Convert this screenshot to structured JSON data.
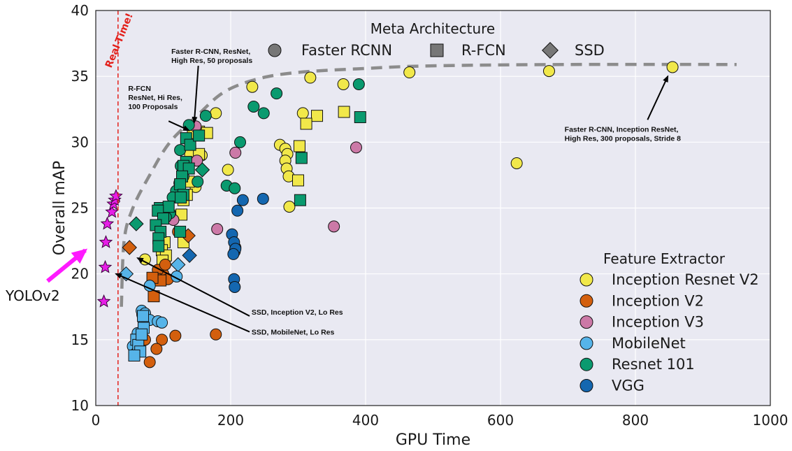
{
  "chart_data": {
    "type": "scatter",
    "xlabel": "GPU Time",
    "ylabel": "Overall mAP",
    "xlim": [
      0,
      1000
    ],
    "ylim": [
      10,
      40
    ],
    "xticks": [
      "0",
      "200",
      "400",
      "600",
      "800",
      "1000"
    ],
    "yticks": [
      "10",
      "15",
      "20",
      "25",
      "30",
      "35",
      "40"
    ],
    "grid": true,
    "realtime_label": "Real-Time!",
    "realtime_x": 33,
    "meta_legend": {
      "title": "Meta Architecture",
      "placement": "top-center",
      "items": [
        {
          "label": "Faster RCNN",
          "marker": "circle"
        },
        {
          "label": "R-FCN",
          "marker": "square"
        },
        {
          "label": "SSD",
          "marker": "diamond"
        }
      ]
    },
    "feature_legend": {
      "title": "Feature Extractor",
      "placement": "bottom-right",
      "items": [
        {
          "label": "Inception Resnet V2",
          "color": "#f1e84a"
        },
        {
          "label": "Inception V2",
          "color": "#d35f0e"
        },
        {
          "label": "Inception V3",
          "color": "#cc79a7"
        },
        {
          "label": "MobileNet",
          "color": "#56b4e9"
        },
        {
          "label": "Resnet 101",
          "color": "#0a9a6f"
        },
        {
          "label": "VGG",
          "color": "#1467b0"
        }
      ]
    },
    "frontier": [
      [
        38,
        17.5
      ],
      [
        42,
        22.5
      ],
      [
        55,
        25
      ],
      [
        80,
        27.5
      ],
      [
        110,
        30
      ],
      [
        150,
        32
      ],
      [
        190,
        33.8
      ],
      [
        240,
        34.8
      ],
      [
        300,
        35.3
      ],
      [
        400,
        35.6
      ],
      [
        500,
        35.8
      ],
      [
        700,
        35.9
      ],
      [
        950,
        35.9
      ]
    ],
    "annotations": [
      {
        "lines": [
          "Faster R-CNN, ResNet,",
          "High Res, 50 proposals"
        ],
        "text_at": [
          112,
          36.7
        ],
        "arrow_from": [
          152,
          35.8
        ],
        "arrow_to": [
          146,
          31.5
        ]
      },
      {
        "lines": [
          "R-FCN",
          "ResNet, Hi Res,",
          "100 Proposals"
        ],
        "text_at": [
          48,
          33.9
        ],
        "arrow_from": [
          108,
          31.6
        ],
        "arrow_to": [
          138,
          30.9
        ]
      },
      {
        "lines": [
          "Faster R-CNN, Inception ResNet,",
          "High Res, 300 proposals, Stride 8"
        ],
        "text_at": [
          695,
          30.8
        ],
        "arrow_from": [
          818,
          31.7
        ],
        "arrow_to": [
          848,
          35.0
        ]
      },
      {
        "lines": [
          "SSD, Inception V2, Lo Res"
        ],
        "text_at": [
          231,
          16.9
        ],
        "arrow_from": [
          228,
          16.8
        ],
        "arrow_to": [
          62,
          21.2
        ]
      },
      {
        "lines": [
          "SSD, MobileNet, Lo Res"
        ],
        "text_at": [
          231,
          15.4
        ],
        "arrow_from": [
          228,
          15.6
        ],
        "arrow_to": [
          30,
          20.0
        ]
      }
    ],
    "yolo": {
      "label": "YOLOv2",
      "points": [
        [
          12,
          17.9
        ],
        [
          14,
          20.5
        ],
        [
          15,
          22.4
        ],
        [
          17,
          23.8
        ],
        [
          24,
          24.7
        ],
        [
          26,
          25.3
        ],
        [
          28,
          25.6
        ],
        [
          30,
          25.9
        ]
      ]
    },
    "series": [
      {
        "name": "Inception Resnet V2",
        "color": "#f1e84a",
        "points": [
          {
            "x": 855,
            "y": 35.7,
            "m": "circle"
          },
          {
            "x": 672,
            "y": 35.4,
            "m": "circle"
          },
          {
            "x": 465,
            "y": 35.3,
            "m": "circle"
          },
          {
            "x": 318,
            "y": 34.9,
            "m": "circle"
          },
          {
            "x": 367,
            "y": 34.4,
            "m": "circle"
          },
          {
            "x": 232,
            "y": 34.2,
            "m": "circle"
          },
          {
            "x": 178,
            "y": 32.2,
            "m": "circle"
          },
          {
            "x": 307,
            "y": 32.2,
            "m": "circle"
          },
          {
            "x": 273,
            "y": 29.8,
            "m": "circle"
          },
          {
            "x": 281,
            "y": 29.5,
            "m": "circle"
          },
          {
            "x": 284,
            "y": 29.1,
            "m": "circle"
          },
          {
            "x": 281,
            "y": 28.6,
            "m": "circle"
          },
          {
            "x": 283,
            "y": 28.0,
            "m": "circle"
          },
          {
            "x": 624,
            "y": 28.4,
            "m": "circle"
          },
          {
            "x": 196,
            "y": 27.9,
            "m": "circle"
          },
          {
            "x": 286,
            "y": 27.4,
            "m": "circle"
          },
          {
            "x": 157,
            "y": 29.0,
            "m": "circle"
          },
          {
            "x": 148,
            "y": 26.6,
            "m": "circle"
          },
          {
            "x": 287,
            "y": 25.1,
            "m": "circle"
          },
          {
            "x": 73,
            "y": 21.1,
            "m": "circle"
          },
          {
            "x": 144,
            "y": 30.7,
            "m": "square"
          },
          {
            "x": 153,
            "y": 30.8,
            "m": "square"
          },
          {
            "x": 165,
            "y": 30.7,
            "m": "square"
          },
          {
            "x": 140,
            "y": 29.3,
            "m": "square"
          },
          {
            "x": 153,
            "y": 29.1,
            "m": "square"
          },
          {
            "x": 138,
            "y": 27.0,
            "m": "square"
          },
          {
            "x": 130,
            "y": 25.6,
            "m": "square"
          },
          {
            "x": 135,
            "y": 26.0,
            "m": "square"
          },
          {
            "x": 127,
            "y": 24.5,
            "m": "square"
          },
          {
            "x": 102,
            "y": 22.4,
            "m": "square"
          },
          {
            "x": 98,
            "y": 21.8,
            "m": "square"
          },
          {
            "x": 104,
            "y": 21.4,
            "m": "square"
          },
          {
            "x": 130,
            "y": 22.4,
            "m": "square"
          },
          {
            "x": 99,
            "y": 21.0,
            "m": "square"
          },
          {
            "x": 328,
            "y": 32.0,
            "m": "square"
          },
          {
            "x": 368,
            "y": 32.3,
            "m": "square"
          },
          {
            "x": 312,
            "y": 31.4,
            "m": "square"
          },
          {
            "x": 302,
            "y": 29.7,
            "m": "square"
          },
          {
            "x": 300,
            "y": 27.1,
            "m": "square"
          }
        ]
      },
      {
        "name": "Inception V2",
        "color": "#d35f0e",
        "points": [
          {
            "x": 50,
            "y": 22.0,
            "m": "diamond"
          },
          {
            "x": 137,
            "y": 22.9,
            "m": "diamond"
          },
          {
            "x": 207,
            "y": 22.0,
            "m": "circle"
          },
          {
            "x": 206,
            "y": 21.7,
            "m": "circle"
          },
          {
            "x": 122,
            "y": 23.2,
            "m": "circle"
          },
          {
            "x": 178,
            "y": 15.4,
            "m": "circle"
          },
          {
            "x": 100,
            "y": 20.0,
            "m": "circle"
          },
          {
            "x": 107,
            "y": 19.6,
            "m": "circle"
          },
          {
            "x": 92,
            "y": 20.3,
            "m": "circle"
          },
          {
            "x": 98,
            "y": 15.0,
            "m": "circle"
          },
          {
            "x": 118,
            "y": 15.3,
            "m": "circle"
          },
          {
            "x": 90,
            "y": 14.3,
            "m": "circle"
          },
          {
            "x": 80,
            "y": 13.3,
            "m": "circle"
          },
          {
            "x": 73,
            "y": 15.0,
            "m": "circle"
          },
          {
            "x": 64,
            "y": 14.4,
            "m": "circle"
          },
          {
            "x": 69,
            "y": 16.9,
            "m": "circle"
          },
          {
            "x": 103,
            "y": 20.7,
            "m": "circle"
          },
          {
            "x": 88,
            "y": 19.6,
            "m": "square"
          },
          {
            "x": 96,
            "y": 19.5,
            "m": "square"
          },
          {
            "x": 86,
            "y": 18.3,
            "m": "square"
          },
          {
            "x": 84,
            "y": 19.7,
            "m": "square"
          }
        ]
      },
      {
        "name": "Inception V3",
        "color": "#cc79a7",
        "points": [
          {
            "x": 207,
            "y": 29.2,
            "m": "circle"
          },
          {
            "x": 386,
            "y": 29.6,
            "m": "circle"
          },
          {
            "x": 180,
            "y": 23.4,
            "m": "circle"
          },
          {
            "x": 353,
            "y": 23.6,
            "m": "circle"
          },
          {
            "x": 115,
            "y": 24.1,
            "m": "circle"
          },
          {
            "x": 150,
            "y": 28.6,
            "m": "circle"
          },
          {
            "x": 148,
            "y": 31.2,
            "m": "circle"
          }
        ]
      },
      {
        "name": "MobileNet",
        "color": "#56b4e9",
        "points": [
          {
            "x": 45,
            "y": 20.0,
            "m": "diamond"
          },
          {
            "x": 122,
            "y": 20.7,
            "m": "diamond"
          },
          {
            "x": 68,
            "y": 17.2,
            "m": "circle"
          },
          {
            "x": 70,
            "y": 16.8,
            "m": "circle"
          },
          {
            "x": 73,
            "y": 17.0,
            "m": "circle"
          },
          {
            "x": 80,
            "y": 16.5,
            "m": "circle"
          },
          {
            "x": 92,
            "y": 16.4,
            "m": "circle"
          },
          {
            "x": 98,
            "y": 16.3,
            "m": "circle"
          },
          {
            "x": 62,
            "y": 15.5,
            "m": "circle"
          },
          {
            "x": 55,
            "y": 14.5,
            "m": "circle"
          },
          {
            "x": 60,
            "y": 14.0,
            "m": "circle"
          },
          {
            "x": 80,
            "y": 19.1,
            "m": "circle"
          },
          {
            "x": 120,
            "y": 19.8,
            "m": "circle"
          },
          {
            "x": 70,
            "y": 16.8,
            "m": "square"
          },
          {
            "x": 71,
            "y": 15.9,
            "m": "square"
          },
          {
            "x": 60,
            "y": 15.0,
            "m": "square"
          },
          {
            "x": 63,
            "y": 14.6,
            "m": "square"
          },
          {
            "x": 66,
            "y": 14.1,
            "m": "square"
          },
          {
            "x": 57,
            "y": 13.8,
            "m": "square"
          },
          {
            "x": 68,
            "y": 15.4,
            "m": "square"
          }
        ]
      },
      {
        "name": "Resnet 101",
        "color": "#0a9a6f",
        "points": [
          {
            "x": 390,
            "y": 34.4,
            "m": "circle"
          },
          {
            "x": 268,
            "y": 33.7,
            "m": "circle"
          },
          {
            "x": 234,
            "y": 32.7,
            "m": "circle"
          },
          {
            "x": 249,
            "y": 32.2,
            "m": "circle"
          },
          {
            "x": 163,
            "y": 32.0,
            "m": "circle"
          },
          {
            "x": 138,
            "y": 31.3,
            "m": "circle"
          },
          {
            "x": 214,
            "y": 30.0,
            "m": "circle"
          },
          {
            "x": 125,
            "y": 29.4,
            "m": "circle"
          },
          {
            "x": 194,
            "y": 26.7,
            "m": "circle"
          },
          {
            "x": 206,
            "y": 26.5,
            "m": "circle"
          },
          {
            "x": 126,
            "y": 28.2,
            "m": "circle"
          },
          {
            "x": 124,
            "y": 26.9,
            "m": "circle"
          },
          {
            "x": 119,
            "y": 26.3,
            "m": "circle"
          },
          {
            "x": 114,
            "y": 25.8,
            "m": "circle"
          },
          {
            "x": 110,
            "y": 24.6,
            "m": "circle"
          },
          {
            "x": 104,
            "y": 24.3,
            "m": "circle"
          },
          {
            "x": 130,
            "y": 27.4,
            "m": "circle"
          },
          {
            "x": 151,
            "y": 27.0,
            "m": "circle"
          },
          {
            "x": 60,
            "y": 23.8,
            "m": "diamond"
          },
          {
            "x": 158,
            "y": 27.9,
            "m": "diamond"
          },
          {
            "x": 134,
            "y": 30.3,
            "m": "square"
          },
          {
            "x": 140,
            "y": 29.8,
            "m": "square"
          },
          {
            "x": 134,
            "y": 28.5,
            "m": "square"
          },
          {
            "x": 130,
            "y": 28.2,
            "m": "square"
          },
          {
            "x": 138,
            "y": 28.0,
            "m": "square"
          },
          {
            "x": 128,
            "y": 27.4,
            "m": "square"
          },
          {
            "x": 125,
            "y": 26.8,
            "m": "square"
          },
          {
            "x": 130,
            "y": 26.0,
            "m": "square"
          },
          {
            "x": 126,
            "y": 25.8,
            "m": "square"
          },
          {
            "x": 95,
            "y": 25.0,
            "m": "square"
          },
          {
            "x": 99,
            "y": 24.8,
            "m": "square"
          },
          {
            "x": 108,
            "y": 25.1,
            "m": "square"
          },
          {
            "x": 92,
            "y": 24.8,
            "m": "square"
          },
          {
            "x": 100,
            "y": 24.2,
            "m": "square"
          },
          {
            "x": 89,
            "y": 23.7,
            "m": "square"
          },
          {
            "x": 96,
            "y": 23.2,
            "m": "square"
          },
          {
            "x": 93,
            "y": 22.7,
            "m": "square"
          },
          {
            "x": 93,
            "y": 22.1,
            "m": "square"
          },
          {
            "x": 125,
            "y": 23.2,
            "m": "square"
          },
          {
            "x": 392,
            "y": 31.9,
            "m": "square"
          },
          {
            "x": 305,
            "y": 28.8,
            "m": "square"
          },
          {
            "x": 303,
            "y": 25.6,
            "m": "square"
          },
          {
            "x": 153,
            "y": 30.5,
            "m": "square"
          }
        ]
      },
      {
        "name": "VGG",
        "color": "#1467b0",
        "points": [
          {
            "x": 139,
            "y": 21.4,
            "m": "diamond"
          },
          {
            "x": 248,
            "y": 25.7,
            "m": "circle"
          },
          {
            "x": 218,
            "y": 25.6,
            "m": "circle"
          },
          {
            "x": 210,
            "y": 24.8,
            "m": "circle"
          },
          {
            "x": 202,
            "y": 23.0,
            "m": "circle"
          },
          {
            "x": 205,
            "y": 22.4,
            "m": "circle"
          },
          {
            "x": 207,
            "y": 21.9,
            "m": "circle"
          },
          {
            "x": 204,
            "y": 21.5,
            "m": "circle"
          },
          {
            "x": 205,
            "y": 19.6,
            "m": "circle"
          },
          {
            "x": 206,
            "y": 19.0,
            "m": "circle"
          }
        ]
      }
    ]
  }
}
